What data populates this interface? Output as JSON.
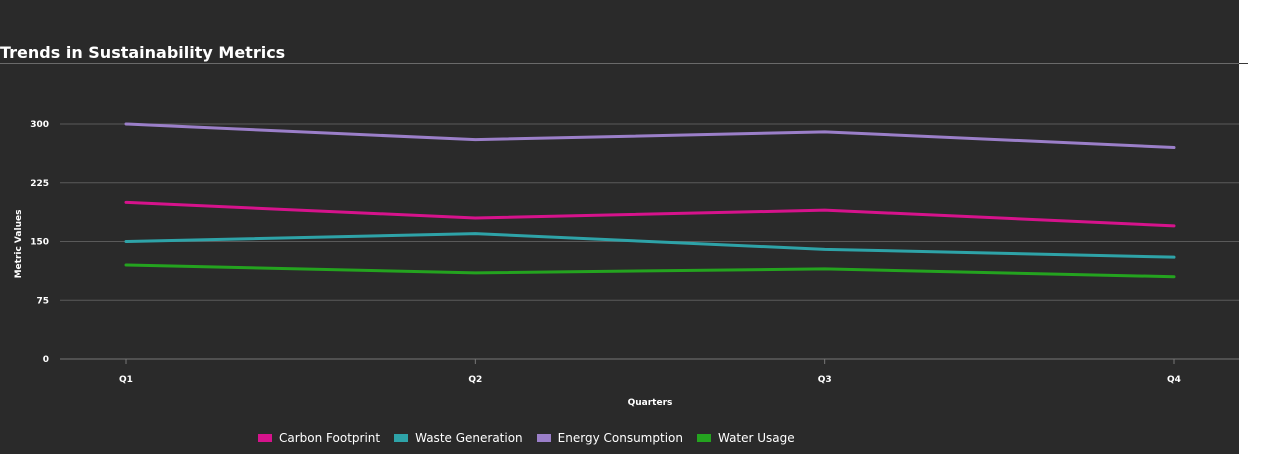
{
  "chart_data": {
    "type": "line",
    "title": "Trends in Sustainability Metrics",
    "xlabel": "Quarters",
    "ylabel": "Metric Values",
    "categories": [
      "Q1",
      "Q2",
      "Q3",
      "Q4"
    ],
    "y_ticks": [
      0,
      75,
      150,
      225,
      300
    ],
    "ylim": [
      0,
      300
    ],
    "grid": "horizontal",
    "legend_position": "bottom",
    "series": [
      {
        "name": "Carbon Footprint",
        "color": "#d6138c",
        "values": [
          200,
          180,
          190,
          170
        ]
      },
      {
        "name": "Waste Generation",
        "color": "#2ea3a8",
        "values": [
          150,
          160,
          140,
          130
        ]
      },
      {
        "name": "Energy Consumption",
        "color": "#9b7fc9",
        "values": [
          300,
          280,
          290,
          270
        ]
      },
      {
        "name": "Water Usage",
        "color": "#24a31f",
        "values": [
          120,
          110,
          115,
          105
        ]
      }
    ]
  }
}
